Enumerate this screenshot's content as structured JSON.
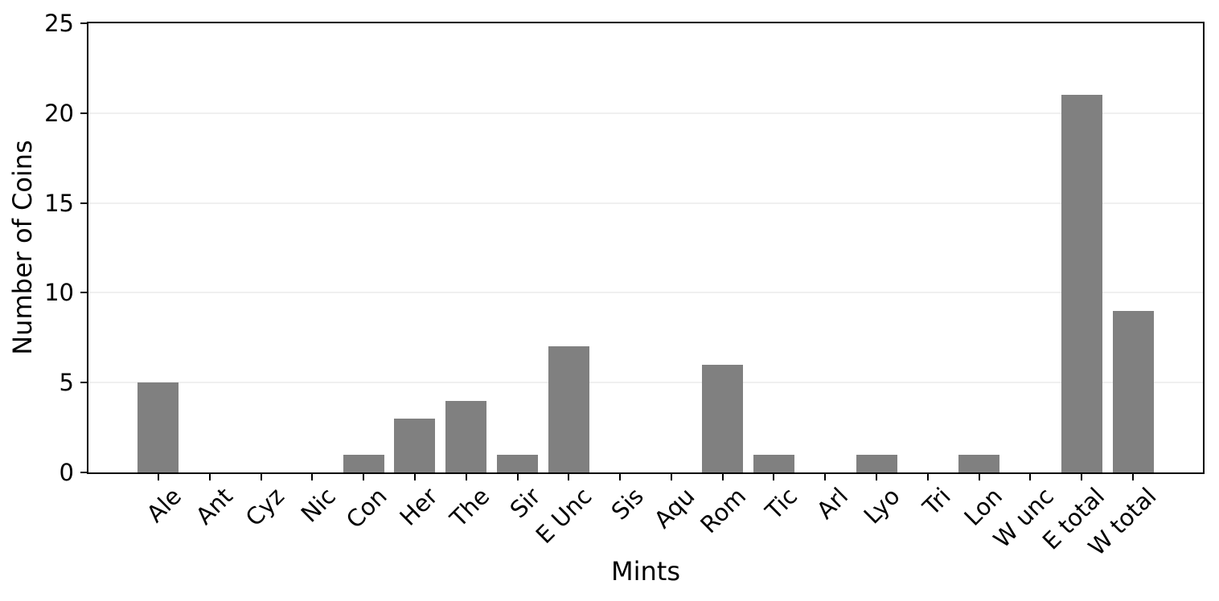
{
  "figure": {
    "background": "#ffffff"
  },
  "chart_data": {
    "type": "bar",
    "title": "",
    "xlabel": "Mints",
    "ylabel": "Number of Coins",
    "categories": [
      "Ale",
      "Ant",
      "Cyz",
      "Nic",
      "Con",
      "Her",
      "The",
      "Sir",
      "E Unc",
      "Sis",
      "Aqu",
      "Rom",
      "Tic",
      "Arl",
      "Lyo",
      "Tri",
      "Lon",
      "W unc",
      "E total",
      "W total"
    ],
    "values": [
      5,
      0,
      0,
      0,
      1,
      3,
      4,
      1,
      7,
      0,
      0,
      6,
      1,
      0,
      1,
      0,
      1,
      0,
      21,
      9
    ],
    "ylim": [
      0,
      25
    ],
    "yticks": [
      0,
      5,
      10,
      15,
      20,
      25
    ],
    "grid": "horizontal",
    "grid_values": [
      5,
      10,
      15,
      20
    ],
    "xtick_label_rotation_deg": 45,
    "legend_position": "none",
    "bar_color": "#808080",
    "grid_color": "#f0f0f0",
    "axis_color": "#000000",
    "text_color": "#000000"
  }
}
